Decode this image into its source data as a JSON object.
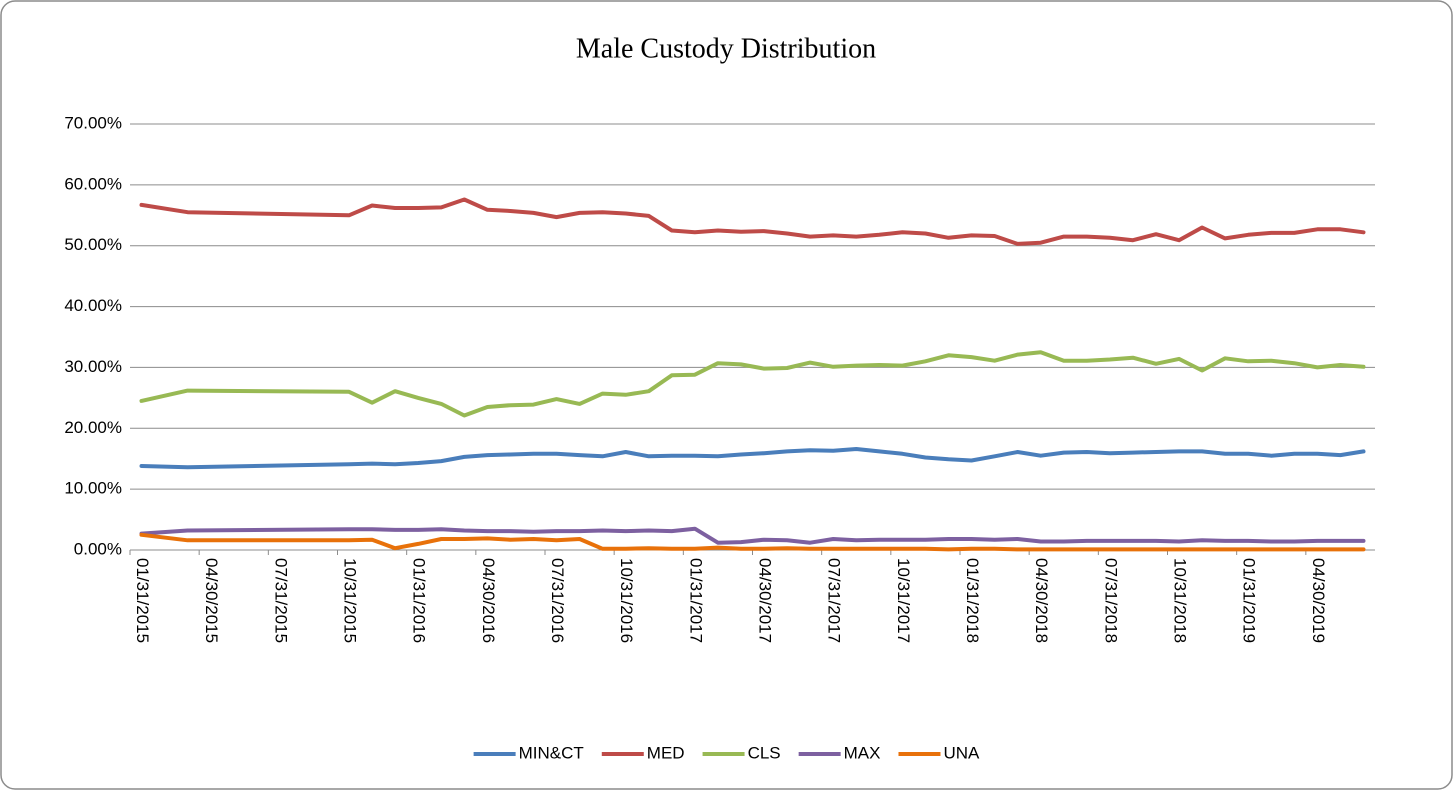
{
  "chart_data": {
    "type": "line",
    "title": "Male  Custody Distribution",
    "x": [
      "01/31/2015",
      "03/31/2015",
      "10/31/2015",
      "11/30/2015",
      "12/31/2015",
      "01/31/2016",
      "02/29/2016",
      "03/31/2016",
      "04/30/2016",
      "05/31/2016",
      "06/30/2016",
      "07/31/2016",
      "08/31/2016",
      "09/30/2016",
      "10/31/2016",
      "11/30/2016",
      "12/31/2016",
      "01/31/2017",
      "02/28/2017",
      "03/31/2017",
      "04/30/2017",
      "05/31/2017",
      "06/30/2017",
      "07/31/2017",
      "08/31/2017",
      "09/30/2017",
      "10/31/2017",
      "11/30/2017",
      "12/31/2017",
      "01/31/2018",
      "02/28/2018",
      "03/31/2018",
      "04/30/2018",
      "05/31/2018",
      "06/30/2018",
      "07/31/2018",
      "08/31/2018",
      "09/30/2018",
      "10/31/2018",
      "11/30/2018",
      "12/31/2018",
      "01/31/2019",
      "02/28/2019",
      "03/31/2019",
      "04/30/2019",
      "05/31/2019",
      "06/30/2019"
    ],
    "xticks": [
      "01/31/2015",
      "04/30/2015",
      "07/31/2015",
      "10/31/2015",
      "01/31/2016",
      "04/30/2016",
      "07/31/2016",
      "10/31/2016",
      "01/31/2017",
      "04/30/2017",
      "07/31/2017",
      "10/31/2017",
      "01/31/2018",
      "04/30/2018",
      "07/31/2018",
      "10/31/2018",
      "01/31/2019",
      "04/30/2019"
    ],
    "ylim": [
      0,
      70
    ],
    "yticks": [
      {
        "value": 0,
        "label": "0.00%"
      },
      {
        "value": 10,
        "label": "10.00%"
      },
      {
        "value": 20,
        "label": "20.00%"
      },
      {
        "value": 30,
        "label": "30.00%"
      },
      {
        "value": 40,
        "label": "40.00%"
      },
      {
        "value": 50,
        "label": "50.00%"
      },
      {
        "value": 60,
        "label": "60.00%"
      },
      {
        "value": 70,
        "label": "70.00%"
      }
    ],
    "grid": true,
    "legend": "bottom",
    "series": [
      {
        "name": "MIN&CT",
        "color": "#4a7ebb",
        "values": [
          13.8,
          13.6,
          14.1,
          14.2,
          14.1,
          14.3,
          14.6,
          15.3,
          15.6,
          15.7,
          15.8,
          15.8,
          15.6,
          15.4,
          16.1,
          15.4,
          15.5,
          15.5,
          15.4,
          15.7,
          15.9,
          16.2,
          16.4,
          16.3,
          16.6,
          16.2,
          15.8,
          15.2,
          14.9,
          14.7,
          15.4,
          16.1,
          15.5,
          16.0,
          16.1,
          15.9,
          16.0,
          16.1,
          16.2,
          16.2,
          15.8,
          15.8,
          15.5,
          15.8,
          15.8,
          15.6,
          16.2
        ]
      },
      {
        "name": "MED",
        "color": "#be4b48",
        "values": [
          56.7,
          55.5,
          55.0,
          56.6,
          56.2,
          56.2,
          56.3,
          57.6,
          55.9,
          55.7,
          55.4,
          54.7,
          55.4,
          55.5,
          55.3,
          54.9,
          52.5,
          52.2,
          52.5,
          52.3,
          52.4,
          52.0,
          51.5,
          51.7,
          51.5,
          51.8,
          52.2,
          52.0,
          51.3,
          51.7,
          51.6,
          50.3,
          50.5,
          51.5,
          51.5,
          51.3,
          50.9,
          51.9,
          50.9,
          53.0,
          51.2,
          51.8,
          52.1,
          52.1,
          52.7,
          52.7,
          52.2
        ]
      },
      {
        "name": "CLS",
        "color": "#98b954",
        "values": [
          24.5,
          26.2,
          26.0,
          24.2,
          26.1,
          25.0,
          24.0,
          22.1,
          23.5,
          23.8,
          23.9,
          24.8,
          24.0,
          25.7,
          25.5,
          26.1,
          28.7,
          28.8,
          30.7,
          30.5,
          29.8,
          29.9,
          30.8,
          30.1,
          30.3,
          30.4,
          30.3,
          31.0,
          32.0,
          31.7,
          31.1,
          32.1,
          32.5,
          31.1,
          31.1,
          31.3,
          31.6,
          30.6,
          31.4,
          29.5,
          31.5,
          31.0,
          31.1,
          30.7,
          30.0,
          30.4,
          30.1
        ]
      },
      {
        "name": "MAX",
        "color": "#7d60a0",
        "values": [
          2.7,
          3.2,
          3.4,
          3.4,
          3.3,
          3.3,
          3.4,
          3.2,
          3.1,
          3.1,
          3.0,
          3.1,
          3.1,
          3.2,
          3.1,
          3.2,
          3.1,
          3.5,
          1.2,
          1.3,
          1.7,
          1.6,
          1.2,
          1.8,
          1.6,
          1.7,
          1.7,
          1.7,
          1.8,
          1.8,
          1.7,
          1.8,
          1.4,
          1.4,
          1.5,
          1.5,
          1.5,
          1.5,
          1.4,
          1.6,
          1.5,
          1.5,
          1.4,
          1.4,
          1.5,
          1.5,
          1.5
        ]
      },
      {
        "name": "UNA",
        "color": "#e8710a",
        "values": [
          2.5,
          1.6,
          1.6,
          1.7,
          0.3,
          1.0,
          1.8,
          1.8,
          1.9,
          1.7,
          1.8,
          1.6,
          1.8,
          0.2,
          0.2,
          0.3,
          0.2,
          0.2,
          0.4,
          0.2,
          0.2,
          0.3,
          0.2,
          0.2,
          0.2,
          0.2,
          0.2,
          0.2,
          0.1,
          0.2,
          0.2,
          0.1,
          0.1,
          0.1,
          0.1,
          0.1,
          0.1,
          0.1,
          0.1,
          0.1,
          0.1,
          0.1,
          0.1,
          0.1,
          0.1,
          0.1,
          0.1
        ]
      }
    ]
  }
}
